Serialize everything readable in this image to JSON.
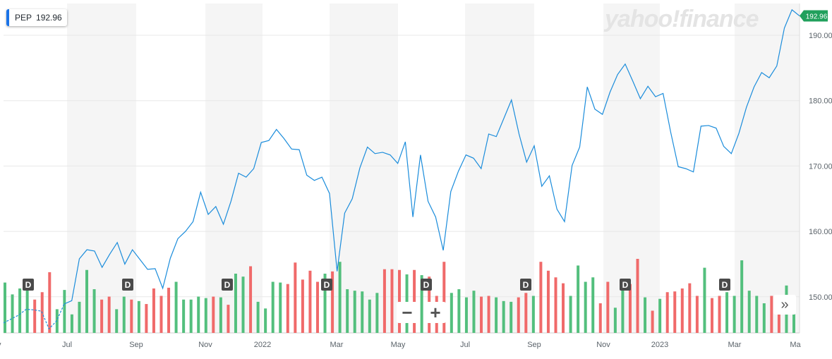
{
  "ticker": {
    "symbol": "PEP",
    "price": "192.96"
  },
  "logo": "yahoo!finance",
  "price_tag": "192.96",
  "controls": {
    "zoom_out": "−",
    "zoom_in": "+",
    "forward": "»"
  },
  "colors": {
    "line": "#1a8cdb",
    "up": "#53bf7d",
    "down": "#f06a6a",
    "band": "#f5f5f5",
    "price_tag": "#21a05c",
    "dividend": "#4a4a4a"
  },
  "chart_data": {
    "type": "line",
    "ylim": [
      144,
      195
    ],
    "yticks": [
      150,
      160,
      170,
      180,
      190
    ],
    "x_tick_labels": [
      "y",
      "Jul",
      "Sep",
      "Nov",
      "2022",
      "Mar",
      "May",
      "Jul",
      "Sep",
      "Nov",
      "2023",
      "Mar",
      "Ma"
    ],
    "series": [
      {
        "values": [
          146.0,
          146.6,
          147.2,
          148.1,
          148.0,
          147.8,
          145.1,
          146.3,
          148.9,
          149.4,
          155.8,
          157.2,
          157.0,
          154.5,
          156.5,
          158.3,
          155.0,
          157.2,
          155.7,
          154.2,
          154.3,
          151.3,
          155.9,
          158.9,
          160.0,
          161.5,
          166.0,
          162.6,
          163.8,
          161.1,
          164.6,
          168.9,
          168.3,
          169.6,
          173.6,
          173.9,
          175.6,
          174.2,
          172.6,
          172.5,
          168.6,
          167.8,
          168.3,
          165.8,
          153.9,
          162.8,
          165.0,
          169.7,
          172.9,
          171.9,
          172.1,
          171.7,
          170.4,
          173.7,
          162.2,
          171.7,
          164.6,
          162.2,
          157.1,
          166.1,
          169.2,
          171.7,
          171.2,
          169.6,
          174.9,
          174.5,
          177.3,
          180.1,
          174.9,
          170.6,
          173.1,
          166.9,
          168.5,
          163.4,
          161.5,
          170.1,
          172.9,
          182.1,
          178.7,
          177.9,
          181.3,
          184.0,
          185.6,
          183.0,
          180.3,
          182.2,
          180.6,
          181.1,
          175.2,
          169.9,
          169.6,
          169.1,
          176.1,
          176.2,
          175.8,
          173.0,
          171.9,
          175.0,
          179.0,
          182.1,
          184.3,
          183.5,
          185.3,
          191.1,
          193.9,
          192.96
        ]
      }
    ],
    "volume_bars": [
      {
        "v": 0.68,
        "dir": "up"
      },
      {
        "v": 0.52,
        "dir": "up"
      },
      {
        "v": 0.6,
        "dir": "up"
      },
      {
        "v": 0.7,
        "dir": "up"
      },
      {
        "v": 0.45,
        "dir": "down"
      },
      {
        "v": 0.55,
        "dir": "down"
      },
      {
        "v": 0.82,
        "dir": "down"
      },
      {
        "v": 0.32,
        "dir": "up"
      },
      {
        "v": 0.58,
        "dir": "up"
      },
      {
        "v": 0.25,
        "dir": "up"
      },
      {
        "v": 0.42,
        "dir": "up"
      },
      {
        "v": 0.85,
        "dir": "up"
      },
      {
        "v": 0.59,
        "dir": "up"
      },
      {
        "v": 0.45,
        "dir": "down"
      },
      {
        "v": 0.49,
        "dir": "down"
      },
      {
        "v": 0.32,
        "dir": "up"
      },
      {
        "v": 0.49,
        "dir": "up"
      },
      {
        "v": 0.45,
        "dir": "down"
      },
      {
        "v": 0.43,
        "dir": "up"
      },
      {
        "v": 0.39,
        "dir": "down"
      },
      {
        "v": 0.6,
        "dir": "down"
      },
      {
        "v": 0.5,
        "dir": "down"
      },
      {
        "v": 0.61,
        "dir": "down"
      },
      {
        "v": 0.69,
        "dir": "up"
      },
      {
        "v": 0.45,
        "dir": "up"
      },
      {
        "v": 0.45,
        "dir": "up"
      },
      {
        "v": 0.49,
        "dir": "up"
      },
      {
        "v": 0.47,
        "dir": "up"
      },
      {
        "v": 0.49,
        "dir": "down"
      },
      {
        "v": 0.48,
        "dir": "up"
      },
      {
        "v": 0.38,
        "dir": "down"
      },
      {
        "v": 0.8,
        "dir": "up"
      },
      {
        "v": 0.76,
        "dir": "up"
      },
      {
        "v": 0.9,
        "dir": "down"
      },
      {
        "v": 0.42,
        "dir": "up"
      },
      {
        "v": 0.33,
        "dir": "up"
      },
      {
        "v": 0.69,
        "dir": "up"
      },
      {
        "v": 0.68,
        "dir": "up"
      },
      {
        "v": 0.66,
        "dir": "down"
      },
      {
        "v": 0.95,
        "dir": "down"
      },
      {
        "v": 0.72,
        "dir": "down"
      },
      {
        "v": 0.84,
        "dir": "down"
      },
      {
        "v": 0.69,
        "dir": "down"
      },
      {
        "v": 0.8,
        "dir": "up"
      },
      {
        "v": 0.83,
        "dir": "down"
      },
      {
        "v": 0.96,
        "dir": "up"
      },
      {
        "v": 0.59,
        "dir": "up"
      },
      {
        "v": 0.57,
        "dir": "up"
      },
      {
        "v": 0.56,
        "dir": "up"
      },
      {
        "v": 0.45,
        "dir": "up"
      },
      {
        "v": 0.54,
        "dir": "up"
      },
      {
        "v": 0.86,
        "dir": "down"
      },
      {
        "v": 0.86,
        "dir": "down"
      },
      {
        "v": 0.85,
        "dir": "down"
      },
      {
        "v": 0.79,
        "dir": "up"
      },
      {
        "v": 0.85,
        "dir": "down"
      },
      {
        "v": 0.78,
        "dir": "up"
      },
      {
        "v": 0.76,
        "dir": "down"
      },
      {
        "v": 0.5,
        "dir": "down"
      },
      {
        "v": 0.96,
        "dir": "down"
      },
      {
        "v": 0.54,
        "dir": "up"
      },
      {
        "v": 0.59,
        "dir": "up"
      },
      {
        "v": 0.48,
        "dir": "up"
      },
      {
        "v": 0.57,
        "dir": "up"
      },
      {
        "v": 0.49,
        "dir": "down"
      },
      {
        "v": 0.5,
        "dir": "down"
      },
      {
        "v": 0.48,
        "dir": "up"
      },
      {
        "v": 0.43,
        "dir": "up"
      },
      {
        "v": 0.42,
        "dir": "up"
      },
      {
        "v": 0.48,
        "dir": "down"
      },
      {
        "v": 0.54,
        "dir": "down"
      },
      {
        "v": 0.5,
        "dir": "up"
      },
      {
        "v": 0.96,
        "dir": "down"
      },
      {
        "v": 0.84,
        "dir": "down"
      },
      {
        "v": 0.75,
        "dir": "down"
      },
      {
        "v": 0.67,
        "dir": "down"
      },
      {
        "v": 0.5,
        "dir": "up"
      },
      {
        "v": 0.91,
        "dir": "up"
      },
      {
        "v": 0.69,
        "dir": "up"
      },
      {
        "v": 0.75,
        "dir": "up"
      },
      {
        "v": 0.4,
        "dir": "down"
      },
      {
        "v": 0.69,
        "dir": "down"
      },
      {
        "v": 0.34,
        "dir": "up"
      },
      {
        "v": 0.6,
        "dir": "up"
      },
      {
        "v": 0.66,
        "dir": "down"
      },
      {
        "v": 1.0,
        "dir": "down"
      },
      {
        "v": 0.48,
        "dir": "up"
      },
      {
        "v": 0.3,
        "dir": "down"
      },
      {
        "v": 0.46,
        "dir": "up"
      },
      {
        "v": 0.55,
        "dir": "down"
      },
      {
        "v": 0.56,
        "dir": "down"
      },
      {
        "v": 0.6,
        "dir": "down"
      },
      {
        "v": 0.67,
        "dir": "down"
      },
      {
        "v": 0.5,
        "dir": "down"
      },
      {
        "v": 0.88,
        "dir": "up"
      },
      {
        "v": 0.47,
        "dir": "down"
      },
      {
        "v": 0.5,
        "dir": "down"
      },
      {
        "v": 0.55,
        "dir": "up"
      },
      {
        "v": 0.5,
        "dir": "up"
      },
      {
        "v": 0.98,
        "dir": "up"
      },
      {
        "v": 0.57,
        "dir": "up"
      },
      {
        "v": 0.5,
        "dir": "up"
      },
      {
        "v": 0.4,
        "dir": "up"
      },
      {
        "v": 0.5,
        "dir": "down"
      },
      {
        "v": 0.5,
        "dir": "down"
      },
      {
        "v": 0.64,
        "dir": "up"
      },
      {
        "v": 0.45,
        "dir": "up"
      }
    ],
    "dividend_marker": "D"
  }
}
